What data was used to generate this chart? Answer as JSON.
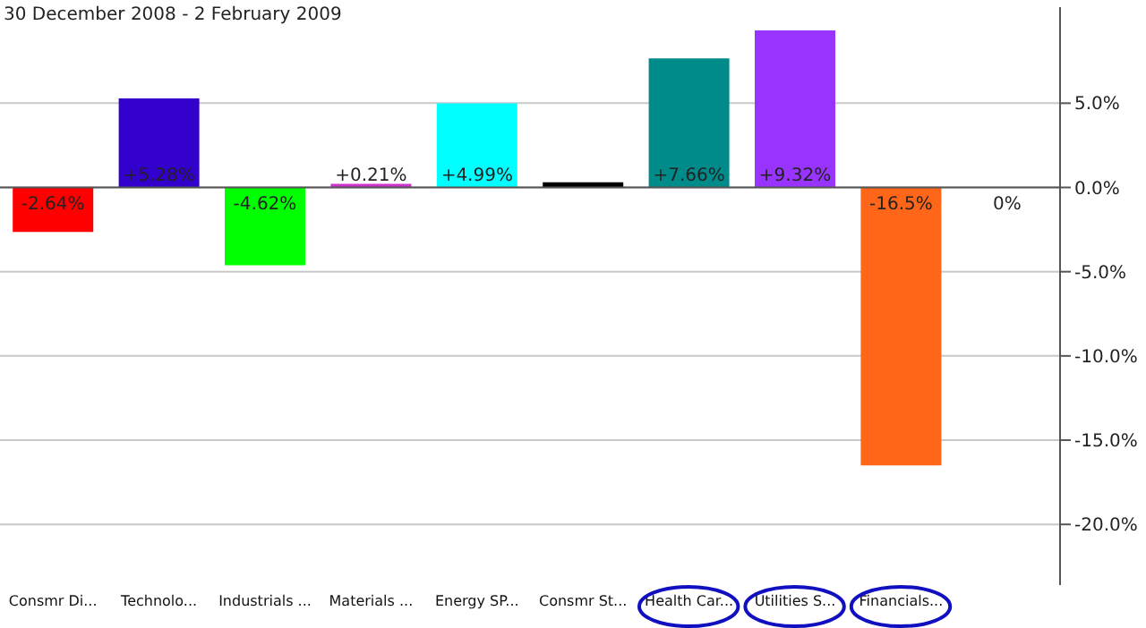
{
  "chart_data": {
    "type": "bar",
    "title": "30 December 2008 - 2 February 2009",
    "categories": [
      "Consmr Di...",
      "Technolo...",
      "Industrials ...",
      "Materials ...",
      "Energy SP...",
      "Consmr St...",
      "Health Car...",
      "Utilities S...",
      "Financials...",
      null
    ],
    "values": [
      -2.64,
      5.28,
      -4.62,
      0.21,
      4.99,
      0.3,
      7.66,
      9.32,
      -16.5,
      0
    ],
    "colors": [
      "#ff0000",
      "#3300cc",
      "#00ff00",
      "#cc33cc",
      "#00ffff",
      "#000000",
      "#008b8b",
      "#9933ff",
      "#ff6619",
      "#999999"
    ],
    "value_labels": [
      "-2.64%",
      "+5.28%",
      "-4.62%",
      "+0.21%",
      "+4.99%",
      null,
      "+7.66%",
      "+9.32%",
      "-16.5%",
      "0%"
    ],
    "ylim": [
      -23.6,
      10.7
    ],
    "yticks": [
      {
        "value": 5,
        "label": "5.0%"
      },
      {
        "value": 0,
        "label": "0.0%"
      },
      {
        "value": -5,
        "label": "-5.0%"
      },
      {
        "value": -10,
        "label": "-10.0%"
      },
      {
        "value": -15,
        "label": "-15.0%"
      },
      {
        "value": -20,
        "label": "-20.0%"
      }
    ],
    "grid": "y",
    "legend": false
  }
}
